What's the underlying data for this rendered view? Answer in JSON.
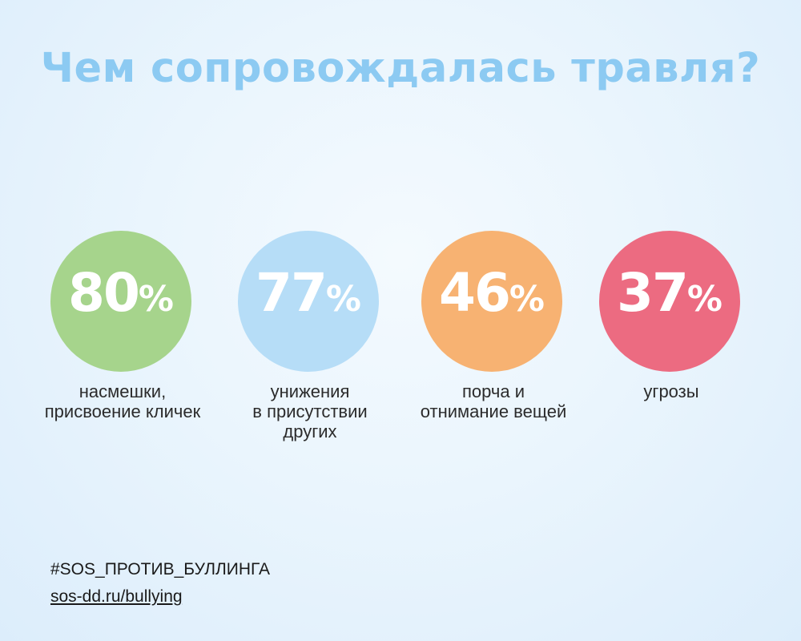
{
  "title": "Чем сопровождалась травля?",
  "stats": [
    {
      "value": "80",
      "unit": "%",
      "label": "насмешки,\nприсвоение кличек",
      "color": "#a6d48c"
    },
    {
      "value": "77",
      "unit": "%",
      "label": "унижения\nв присутствии\nдругих",
      "color": "#b6ddf7"
    },
    {
      "value": "46",
      "unit": "%",
      "label": "порча и\nотнимание вещей",
      "color": "#f7b272"
    },
    {
      "value": "37",
      "unit": "%",
      "label": "угрозы",
      "color": "#ec6b81"
    }
  ],
  "footer": {
    "hashtag": "#SOS_ПРОТИВ_БУЛЛИНГА",
    "link": "sos-dd.ru/bullying"
  }
}
